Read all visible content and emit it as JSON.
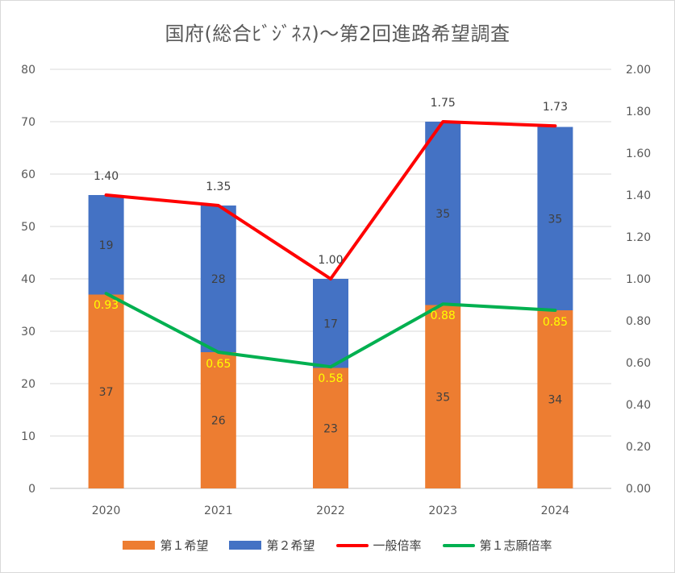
{
  "chart_data": {
    "type": "bar",
    "title": "国府(総合ﾋﾞｼﾞﾈｽ)～第2回進路希望調査",
    "categories": [
      "2020",
      "2021",
      "2022",
      "2023",
      "2024"
    ],
    "left_axis": {
      "min": 0,
      "max": 80,
      "ticks": [
        "0",
        "10",
        "20",
        "30",
        "40",
        "50",
        "60",
        "70",
        "80"
      ]
    },
    "right_axis": {
      "min": 0,
      "max": 2,
      "ticks": [
        "0.00",
        "0.20",
        "0.40",
        "0.60",
        "0.80",
        "1.00",
        "1.20",
        "1.40",
        "1.60",
        "1.80",
        "2.00"
      ]
    },
    "stacked_bars": [
      {
        "name": "第１希望",
        "color": "#ed7d31",
        "values": [
          37,
          26,
          23,
          35,
          34
        ],
        "labels": [
          "37",
          "26",
          "23",
          "35",
          "34"
        ]
      },
      {
        "name": "第２希望",
        "color": "#4472c4",
        "values": [
          19,
          28,
          17,
          35,
          35
        ],
        "labels": [
          "19",
          "28",
          "17",
          "35",
          "35"
        ]
      }
    ],
    "lines": [
      {
        "name": "一般倍率",
        "color": "#ff0000",
        "axis": "right",
        "values": [
          1.4,
          1.35,
          1.0,
          1.75,
          1.73
        ],
        "labels": [
          "1.40",
          "1.35",
          "1.00",
          "1.75",
          "1.73"
        ],
        "label_color": "#404040"
      },
      {
        "name": "第１志願倍率",
        "color": "#00b050",
        "axis": "right",
        "values": [
          0.93,
          0.65,
          0.58,
          0.88,
          0.85
        ],
        "labels": [
          "0.93",
          "0.65",
          "0.58",
          "0.88",
          "0.85"
        ],
        "label_color": "#ffff00"
      }
    ],
    "grid": true,
    "legend_position": "bottom"
  }
}
